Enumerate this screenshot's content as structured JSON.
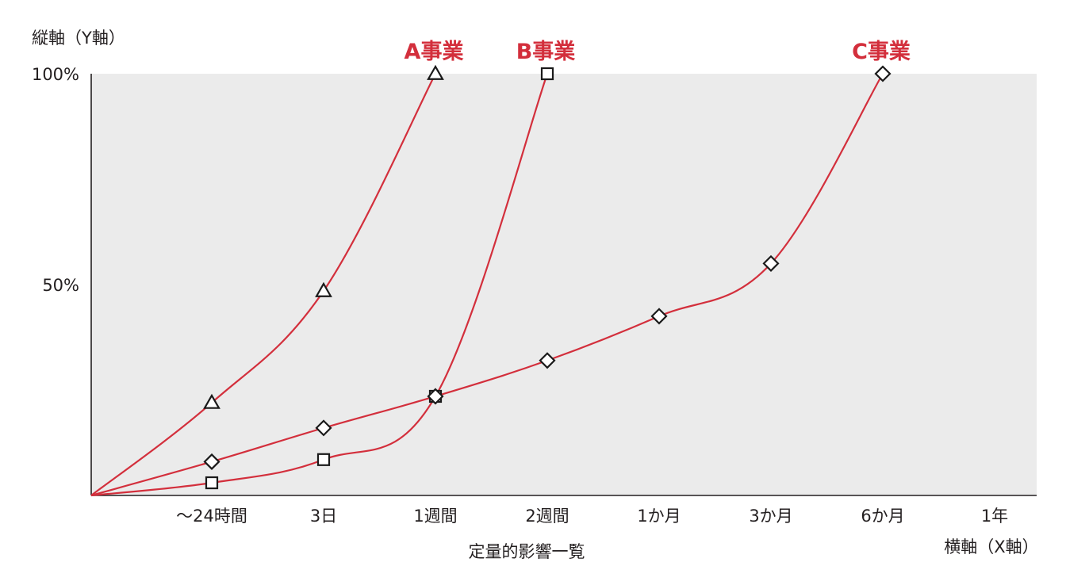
{
  "chart_data": {
    "type": "line",
    "ylabel": "縦軸（Y軸）",
    "xlabel": "横軸（X軸）",
    "caption": "定量的影響一覧",
    "categories": [
      "～24時間",
      "3日",
      "1週間",
      "2週間",
      "1か月",
      "3か月",
      "6か月",
      "1年"
    ],
    "yticks": [
      "100%",
      "50%"
    ],
    "ytick_values": [
      100,
      50
    ],
    "ylim": [
      0,
      100
    ],
    "grid": false,
    "plot_background": "#ebebeb",
    "line_color": "#d32f3c",
    "label_color": "#d32f3c",
    "series": [
      {
        "name": "A事業",
        "marker": "triangle",
        "points": [
          {
            "x": 0,
            "y": 0
          },
          {
            "x": 1,
            "y": 22
          },
          {
            "x": 2,
            "y": 48.5
          },
          {
            "x": 3,
            "y": 100
          }
        ]
      },
      {
        "name": "B事業",
        "marker": "square",
        "points": [
          {
            "x": 0,
            "y": 0
          },
          {
            "x": 1,
            "y": 3
          },
          {
            "x": 2,
            "y": 8.5
          },
          {
            "x": 3,
            "y": 23.5
          },
          {
            "x": 4,
            "y": 100
          }
        ]
      },
      {
        "name": "C事業",
        "marker": "diamond",
        "points": [
          {
            "x": 0,
            "y": 0
          },
          {
            "x": 1,
            "y": 8
          },
          {
            "x": 2,
            "y": 16
          },
          {
            "x": 3,
            "y": 23.5
          },
          {
            "x": 4,
            "y": 32
          },
          {
            "x": 5,
            "y": 42.5
          },
          {
            "x": 6,
            "y": 55
          },
          {
            "x": 7,
            "y": 100
          }
        ]
      }
    ]
  }
}
